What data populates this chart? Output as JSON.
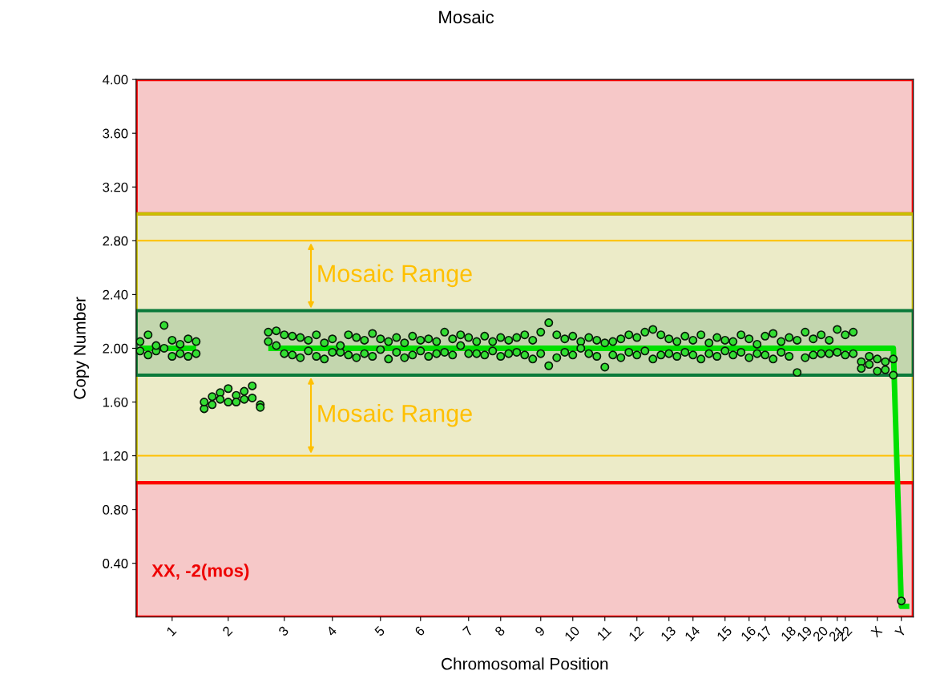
{
  "chart_data": {
    "type": "scatter",
    "title": "Mosaic",
    "xlabel": "Chromosomal Position",
    "ylabel": "Copy Number",
    "categories": [
      null,
      null,
      null,
      null,
      "1",
      null,
      null,
      null,
      null,
      null,
      null,
      "2",
      null,
      null,
      null,
      null,
      null,
      null,
      "3",
      null,
      null,
      null,
      null,
      null,
      "4",
      null,
      null,
      null,
      null,
      null,
      "5",
      null,
      null,
      null,
      null,
      "6",
      null,
      null,
      null,
      null,
      null,
      "7",
      null,
      null,
      null,
      "8",
      null,
      null,
      null,
      null,
      "9",
      null,
      null,
      null,
      "10",
      null,
      null,
      null,
      "11",
      null,
      null,
      null,
      "12",
      null,
      null,
      null,
      "13",
      null,
      null,
      "14",
      null,
      null,
      null,
      "15",
      null,
      null,
      "16",
      null,
      "17",
      null,
      null,
      "18",
      null,
      "19",
      null,
      "20",
      null,
      "21",
      "22",
      null,
      null,
      null,
      "X",
      null,
      null,
      "Y",
      null
    ],
    "ylim": [
      0,
      4.0
    ],
    "yticks": [
      {
        "value": 0.4,
        "label": "0.40"
      },
      {
        "value": 0.8,
        "label": "0.80"
      },
      {
        "value": 1.2,
        "label": "1.20"
      },
      {
        "value": 1.6,
        "label": "1.60"
      },
      {
        "value": 2.0,
        "label": "2.00"
      },
      {
        "value": 2.4,
        "label": "2.40"
      },
      {
        "value": 2.8,
        "label": "2.80"
      },
      {
        "value": 3.2,
        "label": "3.20"
      },
      {
        "value": 3.6,
        "label": "3.60"
      },
      {
        "value": 4.0,
        "label": "4.00"
      }
    ],
    "bands": [
      {
        "axis": "y",
        "from": 3.0,
        "to": 4.0,
        "color": "#ff0000"
      },
      {
        "axis": "y",
        "from": 1.0,
        "to": 3.0,
        "color": "#c8c000"
      },
      {
        "axis": "y",
        "from": 0.0,
        "to": 1.0,
        "color": "#ff0000"
      },
      {
        "axis": "y",
        "from": 1.8,
        "to": 2.28,
        "color": "#0a7a3a"
      }
    ],
    "ref_lines": [
      {
        "axis": "y",
        "value": 2.8,
        "color": "#ffc000"
      },
      {
        "axis": "y",
        "value": 1.2,
        "color": "#ffc000"
      }
    ],
    "annotations": [
      "Mosaic Range",
      "Mosaic Range",
      "XX, -2(mos)"
    ],
    "grid": false,
    "legend": false,
    "series": [
      {
        "type": "line",
        "color": "#00e000",
        "marker": "none",
        "values": [
          2.0,
          2.0,
          2.0,
          2.0,
          2.0,
          2.0,
          2.0,
          2.0,
          null,
          null,
          null,
          null,
          null,
          null,
          null,
          null,
          2.0,
          2.0,
          2.0,
          2.0,
          2.0,
          2.0,
          2.0,
          2.0,
          2.0,
          2.0,
          2.0,
          2.0,
          2.0,
          2.0,
          2.0,
          2.0,
          2.0,
          2.0,
          2.0,
          2.0,
          2.0,
          2.0,
          2.0,
          2.0,
          2.0,
          2.0,
          2.0,
          2.0,
          2.0,
          2.0,
          2.0,
          2.0,
          2.0,
          2.0,
          2.0,
          2.0,
          2.0,
          2.0,
          2.0,
          2.0,
          2.0,
          2.0,
          2.0,
          2.0,
          2.0,
          2.0,
          2.0,
          2.0,
          2.0,
          2.0,
          2.0,
          2.0,
          2.0,
          2.0,
          2.0,
          2.0,
          2.0,
          2.0,
          2.0,
          2.0,
          2.0,
          2.0,
          2.0,
          2.0,
          2.0,
          2.0,
          2.0,
          2.0,
          2.0,
          2.0,
          2.0,
          2.0,
          2.0,
          2.0,
          2.0,
          2.0,
          2.0,
          2.0,
          2.0,
          0.08,
          0.08
        ]
      },
      {
        "color": "#33dd33",
        "marker": "circle",
        "values": [
          2.05,
          2.1,
          1.98,
          2.17,
          2.06,
          1.96,
          2.07,
          2.05,
          1.55,
          1.64,
          1.67,
          1.7,
          1.65,
          1.68,
          1.72,
          1.58,
          2.12,
          2.13,
          2.1,
          2.09,
          2.08,
          2.06,
          2.1,
          2.04,
          2.07,
          1.97,
          2.1,
          2.08,
          2.06,
          2.11,
          2.07,
          2.05,
          2.08,
          2.04,
          2.09,
          2.06,
          2.07,
          2.05,
          2.12,
          2.07,
          2.1,
          2.08,
          2.05,
          2.09,
          2.05,
          2.08,
          2.06,
          2.08,
          2.1,
          2.06,
          2.12,
          2.19,
          2.1,
          2.07,
          2.09,
          2.05,
          2.08,
          2.06,
          2.04,
          2.05,
          2.07,
          2.1,
          2.08,
          2.12,
          2.14,
          2.1,
          2.07,
          2.05,
          2.09,
          2.06,
          2.1,
          2.04,
          2.08,
          2.06,
          2.05,
          2.1,
          2.07,
          2.03,
          2.09,
          2.11,
          2.05,
          2.08,
          2.06,
          2.12,
          2.07,
          2.1,
          2.06,
          2.14,
          2.1,
          2.12,
          1.9,
          1.94,
          1.92,
          1.9,
          1.92,
          0.12,
          null
        ]
      },
      {
        "color": "#33dd33",
        "marker": "circle",
        "values": [
          1.98,
          1.95,
          2.02,
          2.0,
          1.94,
          2.03,
          1.94,
          1.96,
          1.6,
          1.58,
          1.62,
          1.6,
          1.6,
          1.62,
          1.63,
          1.56,
          2.05,
          2.02,
          1.96,
          1.95,
          1.93,
          1.98,
          1.94,
          1.92,
          1.97,
          2.02,
          1.95,
          1.93,
          1.96,
          1.94,
          1.99,
          1.92,
          1.97,
          1.93,
          1.95,
          1.98,
          1.94,
          1.96,
          1.97,
          1.95,
          2.02,
          1.96,
          1.96,
          1.95,
          1.98,
          1.94,
          1.96,
          1.97,
          1.95,
          1.92,
          1.96,
          1.87,
          1.93,
          1.97,
          1.95,
          2.0,
          1.96,
          1.94,
          1.86,
          1.95,
          1.93,
          1.97,
          1.95,
          1.98,
          1.92,
          1.95,
          1.96,
          1.94,
          1.97,
          1.95,
          1.92,
          1.96,
          1.94,
          1.98,
          1.95,
          1.97,
          1.93,
          1.96,
          1.95,
          1.92,
          1.97,
          1.94,
          1.82,
          1.93,
          1.95,
          1.96,
          1.96,
          1.97,
          1.95,
          1.96,
          1.85,
          1.88,
          1.83,
          1.84,
          1.8,
          null,
          null
        ]
      }
    ]
  }
}
